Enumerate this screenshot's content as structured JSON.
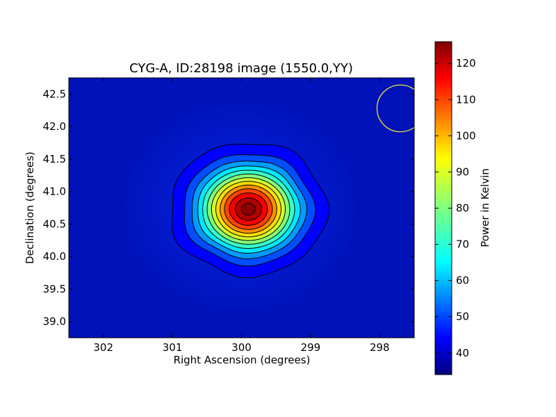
{
  "chart_data": {
    "type": "heatmap",
    "title": "CYG-A, ID:28198 image (1550.0,YY)",
    "xlabel": "Right Ascension (degrees)",
    "ylabel": "Declination (degrees)",
    "xlim": [
      302.5,
      297.5
    ],
    "ylim": [
      38.75,
      42.75
    ],
    "x_ticks": [
      "302",
      "301",
      "300",
      "299",
      "298"
    ],
    "x_tick_values": [
      302,
      301,
      300,
      299,
      298
    ],
    "y_ticks": [
      "39.0",
      "39.5",
      "40.0",
      "40.5",
      "41.0",
      "41.5",
      "42.0",
      "42.5"
    ],
    "y_tick_values": [
      39.0,
      39.5,
      40.0,
      40.5,
      41.0,
      41.5,
      42.0,
      42.5
    ],
    "colormap": "jet",
    "source": {
      "ra": 299.9,
      "dec": 40.73,
      "peak": 126,
      "background": 37
    },
    "beam_circle": {
      "ra": 297.7,
      "dec": 42.28,
      "radius_deg": 0.36,
      "color": "#e8e83a"
    },
    "contour_levels": [
      42,
      49,
      56,
      63,
      70,
      77,
      84,
      91,
      98,
      105,
      112,
      119,
      124
    ],
    "colorbar": {
      "label": "Power in Kelvin",
      "range": [
        34,
        126
      ],
      "ticks": [
        "40",
        "50",
        "60",
        "70",
        "80",
        "90",
        "100",
        "110",
        "120"
      ],
      "tick_values": [
        40,
        50,
        60,
        70,
        80,
        90,
        100,
        110,
        120
      ]
    }
  }
}
